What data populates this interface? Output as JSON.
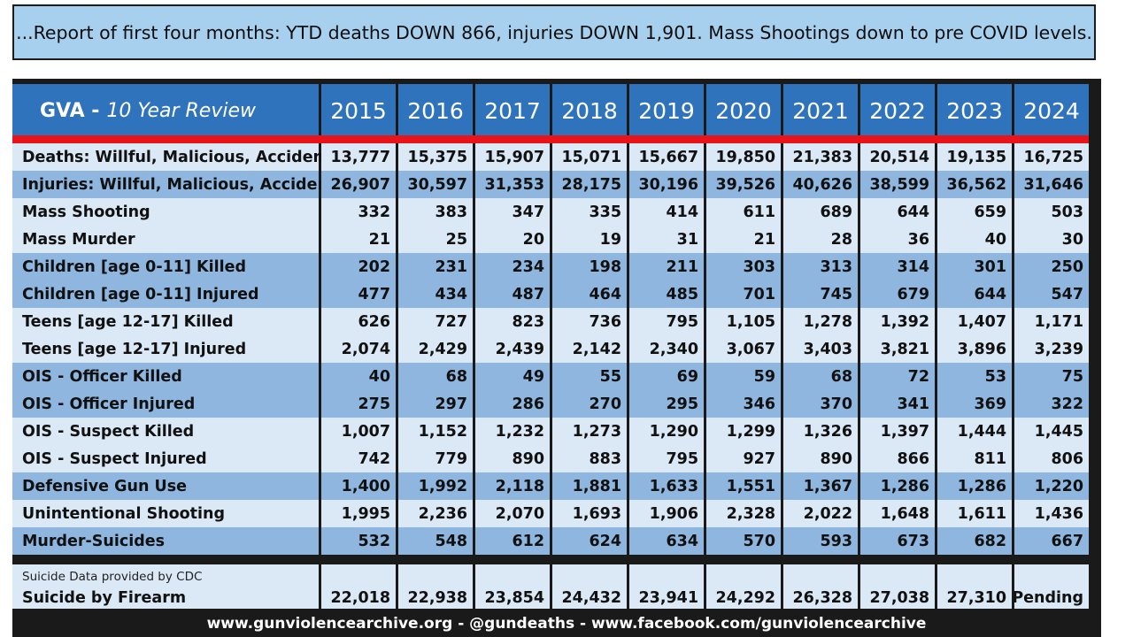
{
  "banner": "...Report of first four months: YTD deaths DOWN 866, injuries DOWN 1,901. Mass Shootings down to pre COVID levels.",
  "table": {
    "title_bold": "GVA -",
    "title_italic": "10 Year Review",
    "years": [
      "2015",
      "2016",
      "2017",
      "2018",
      "2019",
      "2020",
      "2021",
      "2022",
      "2023",
      "2024"
    ],
    "rows": [
      {
        "label": "Deaths:  Willful, Malicious, Accidental",
        "values": [
          "13,777",
          "15,375",
          "15,907",
          "15,071",
          "15,667",
          "19,850",
          "21,383",
          "20,514",
          "19,135",
          "16,725"
        ]
      },
      {
        "label": "Injuries: Willful, Malicious, Accidental",
        "values": [
          "26,907",
          "30,597",
          "31,353",
          "28,175",
          "30,196",
          "39,526",
          "40,626",
          "38,599",
          "36,562",
          "31,646"
        ]
      },
      {
        "label": "Mass Shooting",
        "values": [
          "332",
          "383",
          "347",
          "335",
          "414",
          "611",
          "689",
          "644",
          "659",
          "503"
        ]
      },
      {
        "label": "Mass Murder",
        "values": [
          "21",
          "25",
          "20",
          "19",
          "31",
          "21",
          "28",
          "36",
          "40",
          "30"
        ]
      },
      {
        "label": "Children [age 0-11] Killed",
        "values": [
          "202",
          "231",
          "234",
          "198",
          "211",
          "303",
          "313",
          "314",
          "301",
          "250"
        ]
      },
      {
        "label": "Children [age 0-11] Injured",
        "values": [
          "477",
          "434",
          "487",
          "464",
          "485",
          "701",
          "745",
          "679",
          "644",
          "547"
        ]
      },
      {
        "label": "Teens [age 12-17] Killed",
        "values": [
          "626",
          "727",
          "823",
          "736",
          "795",
          "1,105",
          "1,278",
          "1,392",
          "1,407",
          "1,171"
        ]
      },
      {
        "label": "Teens [age 12-17] Injured",
        "values": [
          "2,074",
          "2,429",
          "2,439",
          "2,142",
          "2,340",
          "3,067",
          "3,403",
          "3,821",
          "3,896",
          "3,239"
        ]
      },
      {
        "label": "OIS - Officer Killed",
        "values": [
          "40",
          "68",
          "49",
          "55",
          "69",
          "59",
          "68",
          "72",
          "53",
          "75"
        ]
      },
      {
        "label": "OIS - Officer Injured",
        "values": [
          "275",
          "297",
          "286",
          "270",
          "295",
          "346",
          "370",
          "341",
          "369",
          "322"
        ]
      },
      {
        "label": "OIS - Suspect Killed",
        "values": [
          "1,007",
          "1,152",
          "1,232",
          "1,273",
          "1,290",
          "1,299",
          "1,326",
          "1,397",
          "1,444",
          "1,445"
        ]
      },
      {
        "label": "OIS - Suspect Injured",
        "values": [
          "742",
          "779",
          "890",
          "883",
          "795",
          "927",
          "890",
          "866",
          "811",
          "806"
        ]
      },
      {
        "label": "Defensive Gun Use",
        "values": [
          "1,400",
          "1,992",
          "2,118",
          "1,881",
          "1,633",
          "1,551",
          "1,367",
          "1,286",
          "1,286",
          "1,220"
        ]
      },
      {
        "label": "Unintentional Shooting",
        "values": [
          "1,995",
          "2,236",
          "2,070",
          "1,693",
          "1,906",
          "2,328",
          "2,022",
          "1,648",
          "1,611",
          "1,436"
        ]
      },
      {
        "label": "Murder-Suicides",
        "values": [
          "532",
          "548",
          "612",
          "624",
          "634",
          "570",
          "593",
          "673",
          "682",
          "667"
        ]
      }
    ],
    "suicide": {
      "note": "Suicide Data provided by CDC",
      "label": "Suicide by Firearm",
      "values": [
        "22,018",
        "22,938",
        "23,854",
        "24,432",
        "23,941",
        "24,292",
        "26,328",
        "27,038",
        "27,310",
        "Pending"
      ]
    },
    "shading": [
      "light",
      "dark",
      "light",
      "light",
      "dark",
      "dark",
      "light",
      "light",
      "dark",
      "dark",
      "light",
      "light",
      "dark",
      "light",
      "dark"
    ]
  },
  "footer": "www.gunviolencearchive.org  -  @gundeaths  -  www.facebook.com/gunviolencearchive"
}
